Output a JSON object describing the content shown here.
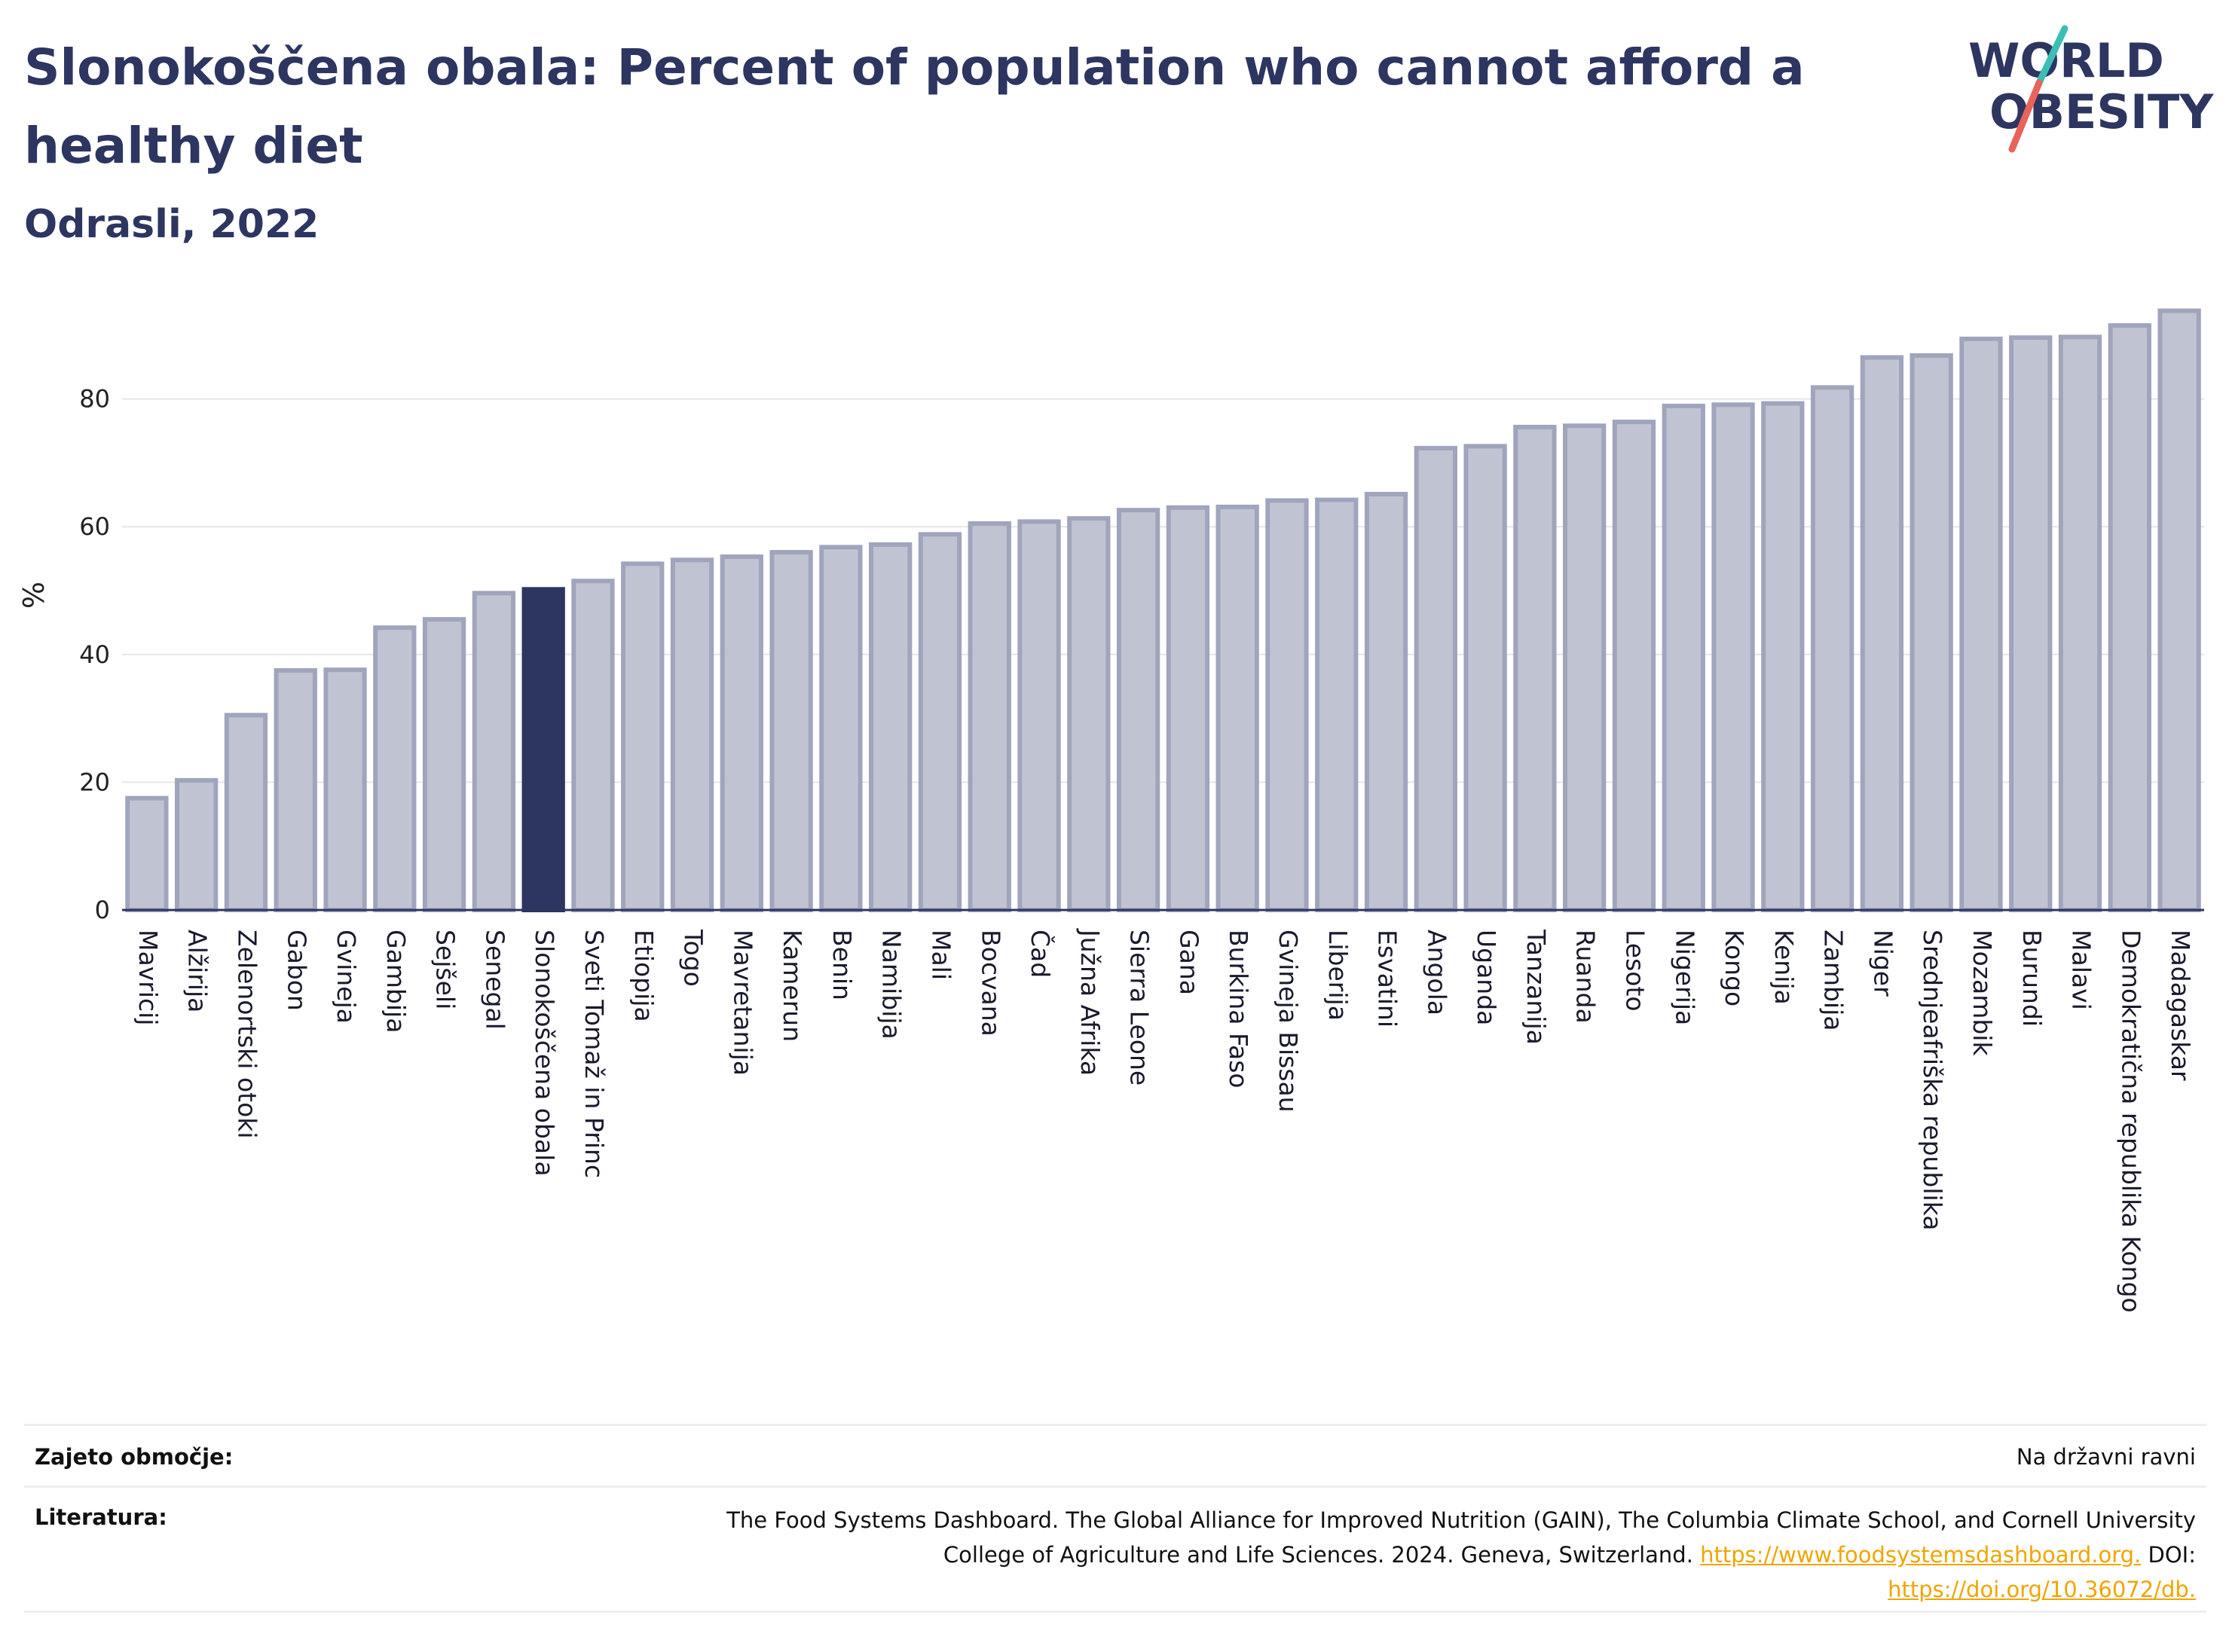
{
  "header": {
    "title": "Slonokoščena obala: Percent of population who cannot afford a healthy diet",
    "subtitle": "Odrasli, 2022"
  },
  "logo": {
    "line1": "WORLD",
    "line2": "OBESITY",
    "colors": {
      "text": "#2d3561",
      "slash_teal": "#3bbfb4",
      "slash_red": "#e8635a"
    }
  },
  "chart_data": {
    "type": "bar",
    "ylabel": "%",
    "ylim": [
      0,
      100
    ],
    "yticks": [
      0,
      20,
      40,
      60,
      80
    ],
    "grid": true,
    "highlight": "Slonokoščena obala",
    "colors": {
      "bar": "#c0c4d2",
      "bar_outline": "#a0a5bd",
      "highlight": "#2d3561"
    },
    "categories": [
      "Mavricij",
      "Alžirija",
      "Zelenortski otoki",
      "Gabon",
      "Gvineja",
      "Gambija",
      "Sejšeli",
      "Senegal",
      "Slonokoščena obala",
      "Sveti Tomaž in Princ",
      "Etiopija",
      "Togo",
      "Mavretanija",
      "Kamerun",
      "Benin",
      "Namibija",
      "Mali",
      "Bocvana",
      "Čad",
      "Južna Afrika",
      "Sierra Leone",
      "Gana",
      "Burkina Faso",
      "Gvineja Bissau",
      "Liberija",
      "Esvatini",
      "Angola",
      "Uganda",
      "Tanzanija",
      "Ruanda",
      "Lesoto",
      "Nigerija",
      "Kongo",
      "Kenija",
      "Zambija",
      "Niger",
      "Srednjeafriška republika",
      "Mozambik",
      "Burundi",
      "Malavi",
      "Demokratična republika Kongo",
      "Madagaskar"
    ],
    "values": [
      17.5,
      20.3,
      30.5,
      37.5,
      37.6,
      44.2,
      45.5,
      49.6,
      50.2,
      51.5,
      54.2,
      54.8,
      55.3,
      56.0,
      56.8,
      57.2,
      58.8,
      60.5,
      60.8,
      61.3,
      62.6,
      63.0,
      63.1,
      64.1,
      64.2,
      65.1,
      72.3,
      72.6,
      75.6,
      75.8,
      76.4,
      78.9,
      79.1,
      79.3,
      81.8,
      86.5,
      86.8,
      89.4,
      89.6,
      89.7,
      91.5,
      93.8
    ]
  },
  "footer": {
    "coverage_label": "Zajeto območje:",
    "coverage_value": "Na državni ravni",
    "reference_label": "Literatura:",
    "reference_line1": "The Food Systems Dashboard. The Global Alliance for Improved Nutrition (GAIN), The Columbia Climate School, and Cornell University",
    "reference_line2_text": "College of Agriculture and Life Sciences. 2024. Geneva, Switzerland. ",
    "reference_link1": "https://www.foodsystemsdashboard.org.",
    "reference_doi_label": " DOI:",
    "reference_link2": "https://doi.org/10.36072/db."
  }
}
